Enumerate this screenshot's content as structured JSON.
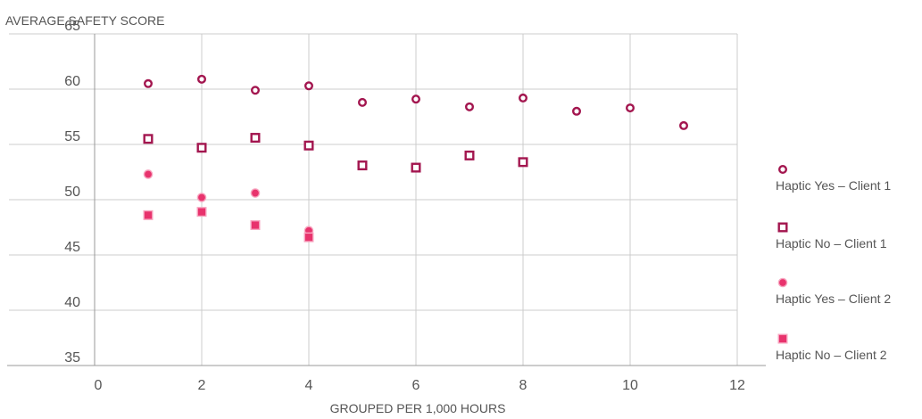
{
  "chart_data": {
    "type": "scatter",
    "title": "",
    "ylabel": "AVERAGE SAFETY SCORE",
    "xlabel": "GROUPED PER 1,000 HOURS",
    "xlim": [
      0,
      12
    ],
    "ylim": [
      35,
      65
    ],
    "x_ticks": [
      0,
      2,
      4,
      6,
      8,
      10,
      12
    ],
    "y_ticks": [
      35,
      40,
      45,
      50,
      55,
      60,
      65
    ],
    "grid": true,
    "legend_position": "right",
    "series": [
      {
        "name": "Haptic Yes – Client 1",
        "marker": "circle-open",
        "color": "#a3164f",
        "points": [
          [
            1,
            60.5
          ],
          [
            2,
            60.9
          ],
          [
            3,
            59.9
          ],
          [
            4,
            60.3
          ],
          [
            5,
            58.8
          ],
          [
            6,
            59.1
          ],
          [
            7,
            58.4
          ],
          [
            8,
            59.2
          ],
          [
            9,
            58.0
          ],
          [
            10,
            58.3
          ],
          [
            11,
            56.7
          ]
        ]
      },
      {
        "name": "Haptic No – Client 1",
        "marker": "square-open",
        "color": "#a3164f",
        "points": [
          [
            1,
            55.5
          ],
          [
            2,
            54.7
          ],
          [
            3,
            55.6
          ],
          [
            4,
            54.9
          ],
          [
            5,
            53.1
          ],
          [
            6,
            52.9
          ],
          [
            7,
            54.0
          ],
          [
            8,
            53.4
          ]
        ]
      },
      {
        "name": "Haptic Yes – Client 2",
        "marker": "circle-filled",
        "color": "#e8336d",
        "points": [
          [
            1,
            52.3
          ],
          [
            2,
            50.2
          ],
          [
            3,
            50.6
          ],
          [
            4,
            47.2
          ]
        ]
      },
      {
        "name": "Haptic No – Client 2",
        "marker": "square-filled",
        "color": "#e8336d",
        "points": [
          [
            1,
            48.6
          ],
          [
            2,
            48.9
          ],
          [
            3,
            47.7
          ],
          [
            4,
            46.6
          ]
        ]
      }
    ]
  }
}
